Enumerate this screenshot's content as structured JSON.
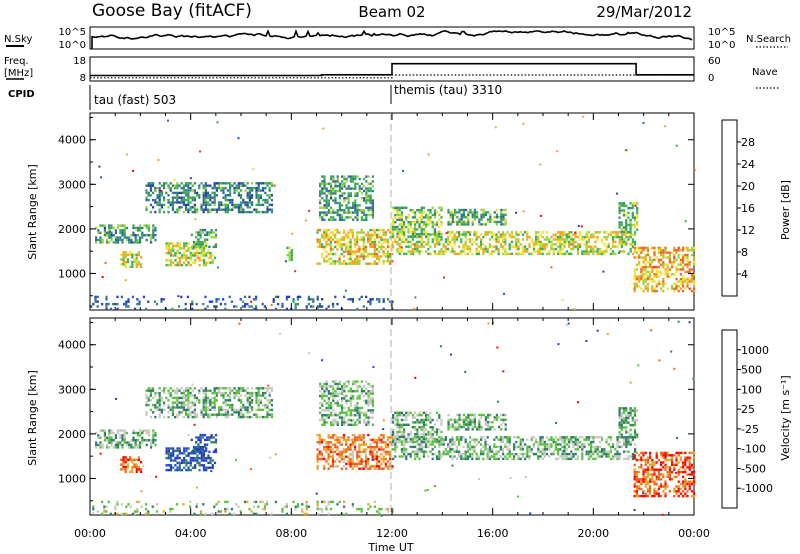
{
  "header": {
    "station": "Goose Bay (fitACF)",
    "beam": "Beam 02",
    "date": "29/Mar/2012"
  },
  "noise_panel": {
    "left_label": "N.Sky",
    "left_ticks": [
      "10^5",
      "10^0"
    ],
    "right_ticks": [
      "10^5",
      "10^0"
    ],
    "right_label": "N.Search"
  },
  "freq_panel": {
    "left_label_1": "Freq.",
    "left_label_2": "[MHz]",
    "left_ticks": [
      "18",
      "8"
    ],
    "right_ticks": [
      "60",
      "0"
    ],
    "right_label": "Nave",
    "freq_mhz": [
      [
        0,
        10.3
      ],
      [
        9.2,
        10.6
      ],
      [
        12.0,
        15.2
      ],
      [
        21.7,
        10.6
      ],
      [
        24,
        10.6
      ]
    ],
    "nave": [
      [
        0,
        8
      ],
      [
        12.0,
        15
      ],
      [
        24,
        15
      ]
    ]
  },
  "cpid": {
    "label": "CPID",
    "modes": [
      {
        "start_hour": 0,
        "name": "tau (fast) 503"
      },
      {
        "start_hour": 12,
        "name": "themis (tau) 3310"
      }
    ]
  },
  "chart_data": [
    {
      "type": "heatmap",
      "name": "power",
      "ylabel": "Slant Range [km]",
      "xlabel": "Time UT",
      "x_range_hours": [
        0,
        24
      ],
      "ylim": [
        180,
        4600
      ],
      "yticks": [
        1000,
        2000,
        3000,
        4000
      ],
      "xtick_labels": [
        "00:00",
        "04:00",
        "08:00",
        "12:00",
        "16:00",
        "20:00",
        "00:00"
      ],
      "colorbar": {
        "label": "Power [dB]",
        "range": [
          0,
          32
        ],
        "ticks": [
          "4",
          "8",
          "12",
          "16",
          "20",
          "24",
          "28"
        ],
        "colors": [
          "#1f3dff",
          "#23419c",
          "#2f6a9c",
          "#3a8a6e",
          "#35b24d",
          "#9fd13a",
          "#f2e22a",
          "#f3a523",
          "#f0661f",
          "#e63322",
          "#ff0000"
        ]
      },
      "regions": [
        {
          "t0": 0.2,
          "t1": 2.6,
          "r0": 1700,
          "r1": 2100,
          "level": 0.35
        },
        {
          "t0": 2.2,
          "t1": 7.2,
          "r0": 2350,
          "r1": 3050,
          "level": 0.3
        },
        {
          "t0": 1.2,
          "t1": 2.0,
          "r0": 1150,
          "r1": 1500,
          "level": 0.55
        },
        {
          "t0": 3.0,
          "t1": 5.0,
          "r0": 1200,
          "r1": 1700,
          "level": 0.55
        },
        {
          "t0": 4.0,
          "t1": 5.0,
          "r0": 1600,
          "r1": 2000,
          "level": 0.4
        },
        {
          "t0": 7.8,
          "t1": 8.0,
          "r0": 1300,
          "r1": 1600,
          "level": 0.5
        },
        {
          "t0": 9.0,
          "t1": 12.0,
          "r0": 1200,
          "r1": 2000,
          "level": 0.6
        },
        {
          "t0": 9.1,
          "t1": 11.2,
          "r0": 2200,
          "r1": 3200,
          "level": 0.35
        },
        {
          "t0": 12.0,
          "t1": 21.7,
          "r0": 1450,
          "r1": 1950,
          "level": 0.55
        },
        {
          "t0": 12.0,
          "t1": 14.0,
          "r0": 1800,
          "r1": 2500,
          "level": 0.45
        },
        {
          "t0": 14.2,
          "t1": 16.5,
          "r0": 2100,
          "r1": 2450,
          "level": 0.4
        },
        {
          "t0": 21.0,
          "t1": 21.7,
          "r0": 1900,
          "r1": 2600,
          "level": 0.45
        },
        {
          "t0": 21.6,
          "t1": 24.0,
          "r0": 600,
          "r1": 1600,
          "level": 0.65
        },
        {
          "t0": 0.0,
          "t1": 12.0,
          "r0": 180,
          "r1": 500,
          "level": 0.2
        }
      ]
    },
    {
      "type": "heatmap",
      "name": "velocity",
      "ylabel": "Slant Range [km]",
      "xlabel": "Time UT",
      "x_range_hours": [
        0,
        24
      ],
      "ylim": [
        180,
        4600
      ],
      "yticks": [
        1000,
        2000,
        3000,
        4000
      ],
      "xtick_labels": [
        "00:00",
        "04:00",
        "08:00",
        "12:00",
        "16:00",
        "20:00",
        "00:00"
      ],
      "colorbar": {
        "label": "Velocity [m s⁻¹]",
        "ticks": [
          "1000",
          "500",
          "100",
          "25",
          "-25",
          "-100",
          "-500",
          "-1000"
        ],
        "colors": [
          "#1f3dff",
          "#23419c",
          "#2f7a6a",
          "#55c23a",
          "#c8c8c0",
          "#f0a020",
          "#f06018",
          "#ff0000"
        ]
      },
      "regions": [
        {
          "t0": 0.2,
          "t1": 2.6,
          "r0": 1700,
          "r1": 2100,
          "level": 0.45
        },
        {
          "t0": 2.2,
          "t1": 7.2,
          "r0": 2350,
          "r1": 3050,
          "level": 0.45
        },
        {
          "t0": 1.2,
          "t1": 2.0,
          "r0": 1150,
          "r1": 1500,
          "level": 0.8
        },
        {
          "t0": 3.0,
          "t1": 5.0,
          "r0": 1200,
          "r1": 1700,
          "level": 0.2
        },
        {
          "t0": 4.0,
          "t1": 5.0,
          "r0": 1600,
          "r1": 2000,
          "level": 0.2
        },
        {
          "t0": 9.0,
          "t1": 12.0,
          "r0": 1200,
          "r1": 2000,
          "level": 0.75
        },
        {
          "t0": 9.1,
          "t1": 11.2,
          "r0": 2200,
          "r1": 3200,
          "level": 0.45
        },
        {
          "t0": 12.0,
          "t1": 21.7,
          "r0": 1450,
          "r1": 1950,
          "level": 0.45
        },
        {
          "t0": 12.0,
          "t1": 14.0,
          "r0": 1800,
          "r1": 2500,
          "level": 0.45
        },
        {
          "t0": 14.2,
          "t1": 16.5,
          "r0": 2100,
          "r1": 2450,
          "level": 0.45
        },
        {
          "t0": 21.0,
          "t1": 21.7,
          "r0": 1900,
          "r1": 2600,
          "level": 0.45
        },
        {
          "t0": 21.6,
          "t1": 24.0,
          "r0": 600,
          "r1": 1600,
          "level": 0.82
        },
        {
          "t0": 0.0,
          "t1": 12.0,
          "r0": 180,
          "r1": 500,
          "level": 0.5
        }
      ]
    }
  ]
}
